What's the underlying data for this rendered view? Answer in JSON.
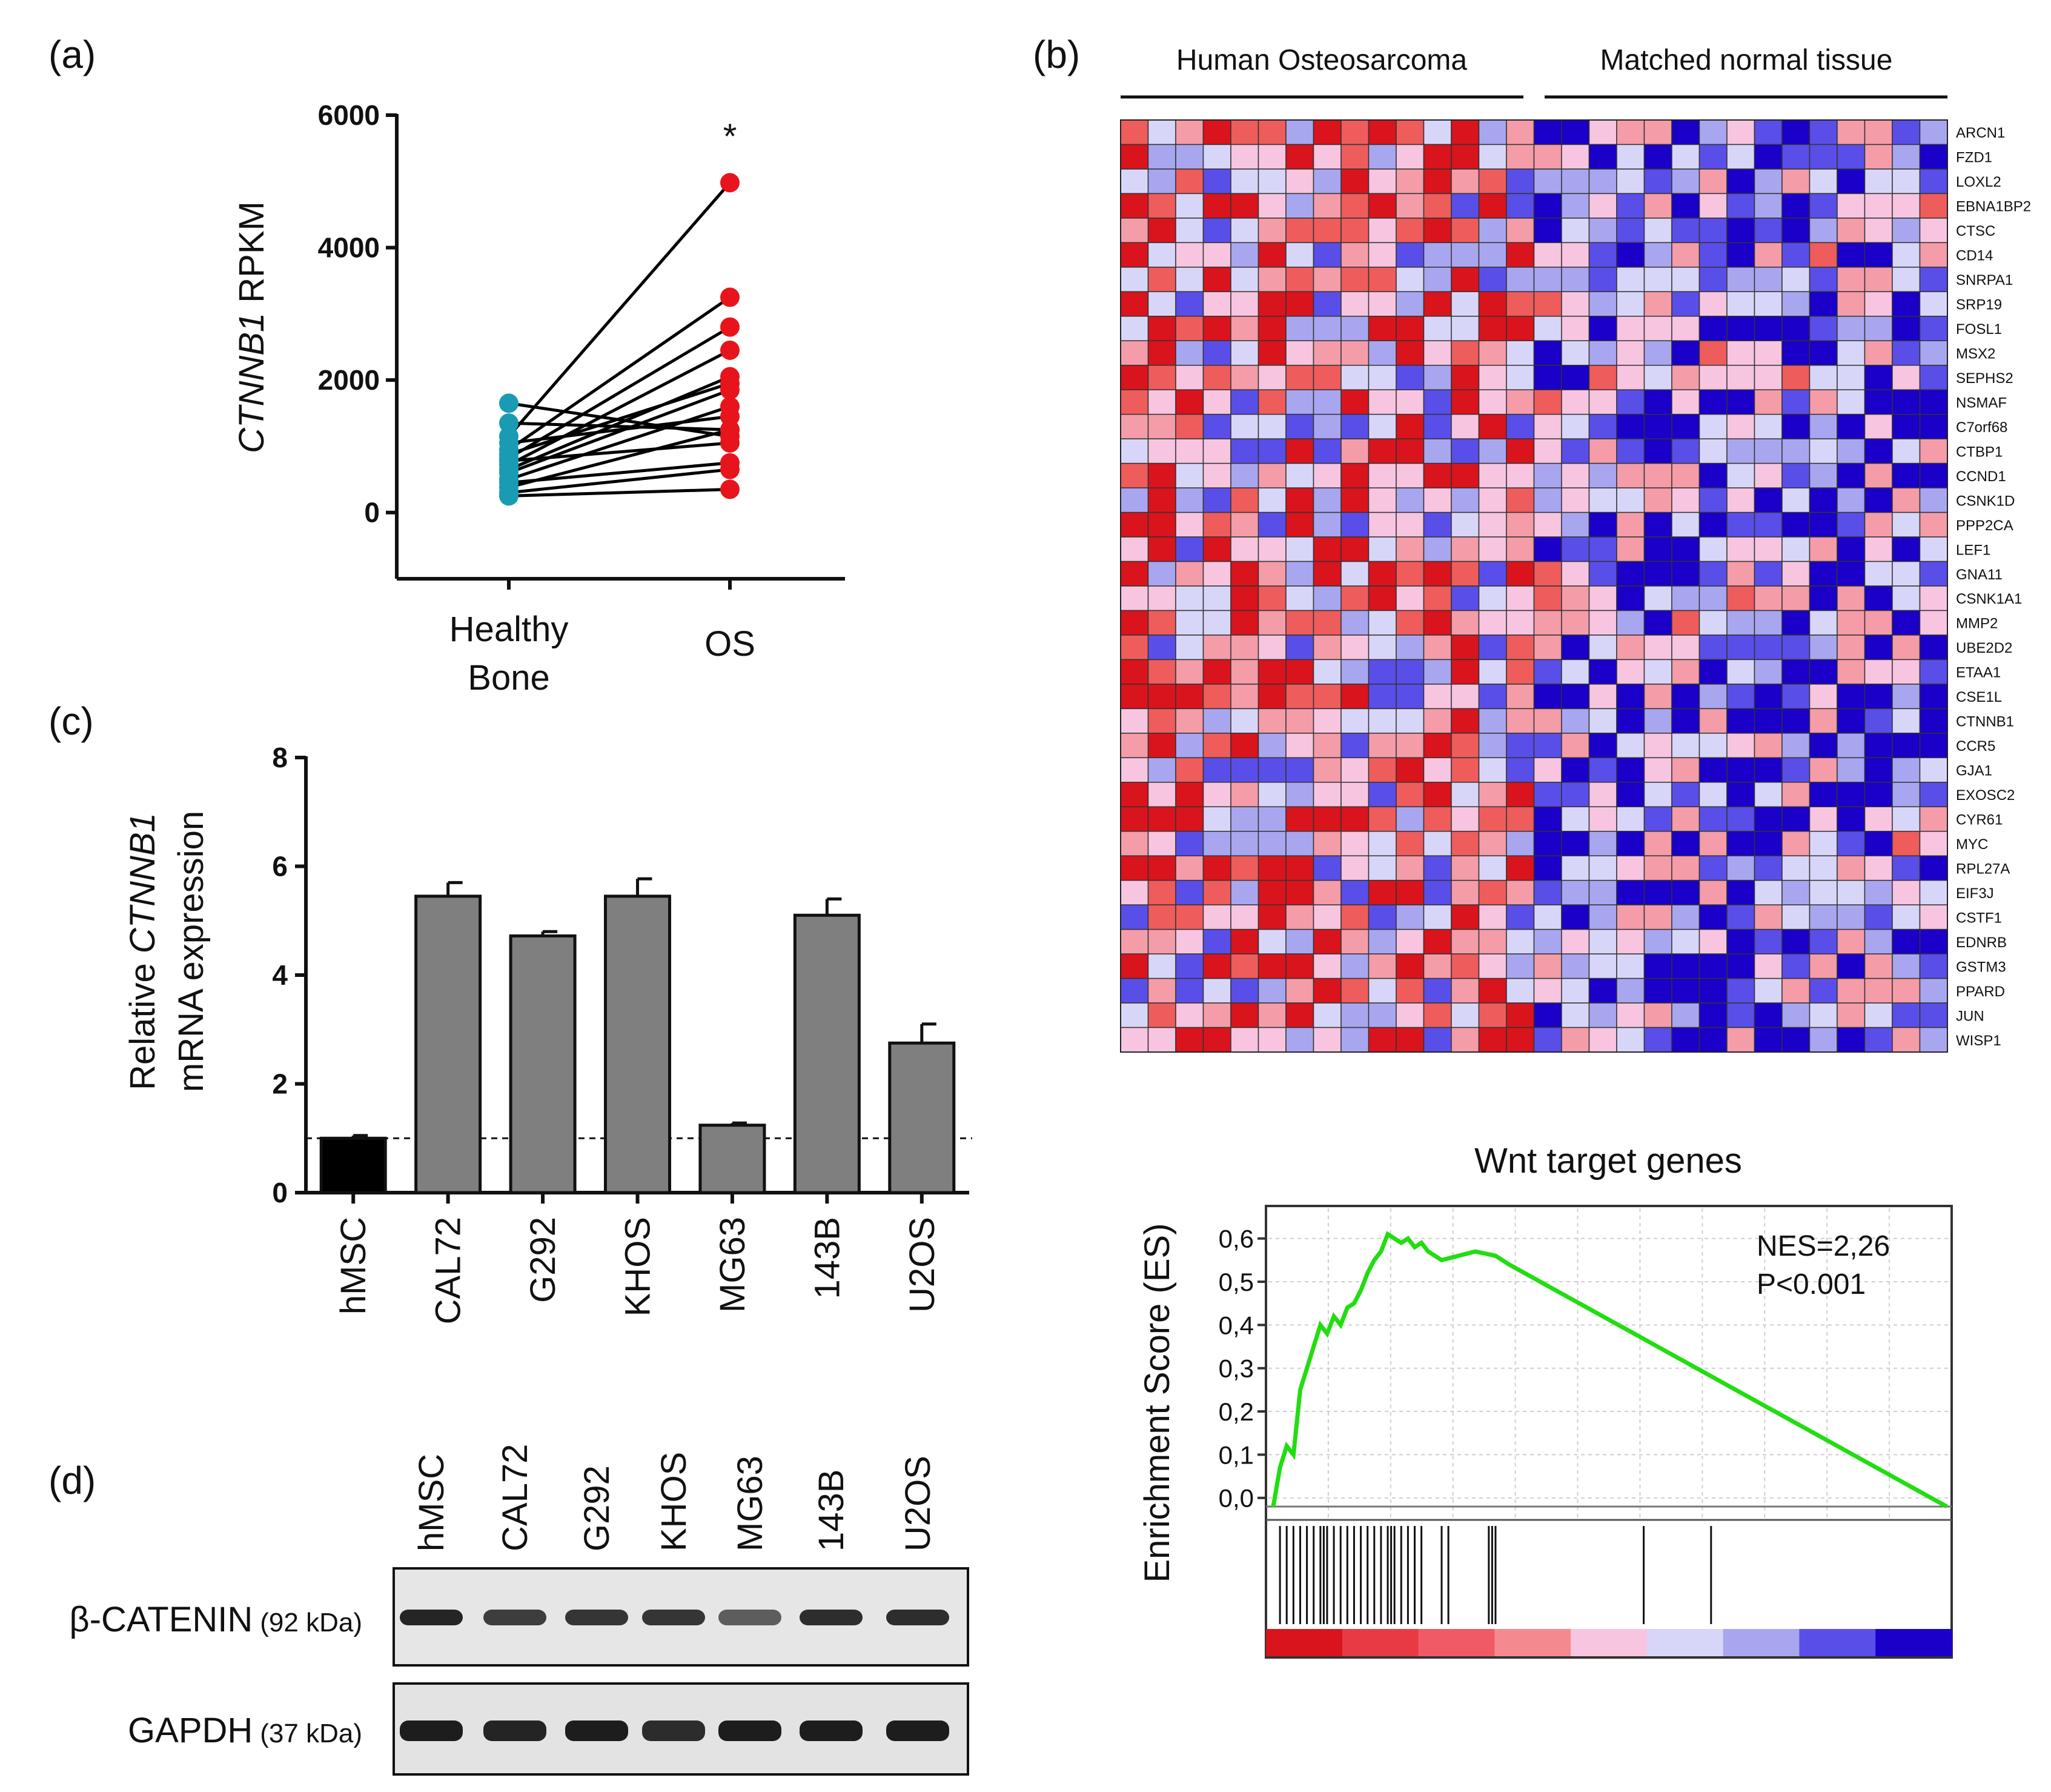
{
  "chart_data": [
    {
      "panel": "(a)",
      "type": "scatter",
      "subtype": "paired dot plot",
      "ylabel_italic": "CTNNB1",
      "ylabel_rest": " RPKM",
      "ylim": [
        -1000,
        6000
      ],
      "yticks": [
        0,
        2000,
        4000,
        6000
      ],
      "categories": [
        "Healthy Bone",
        "OS"
      ],
      "category_lines": [
        [
          "Healthy",
          "Bone"
        ],
        [
          "OS"
        ]
      ],
      "annotation": "*",
      "colors": {
        "healthy": "#1a9bb4",
        "os": "#e8141c",
        "line": "#000000"
      },
      "pairs": [
        [
          1650,
          1150
        ],
        [
          1350,
          1250
        ],
        [
          1150,
          4980
        ],
        [
          1050,
          1450
        ],
        [
          950,
          3250
        ],
        [
          880,
          1950
        ],
        [
          820,
          2800
        ],
        [
          780,
          1050
        ],
        [
          720,
          2450
        ],
        [
          650,
          2050
        ],
        [
          600,
          1850
        ],
        [
          500,
          1600
        ],
        [
          450,
          750
        ],
        [
          380,
          1250
        ],
        [
          300,
          650
        ],
        [
          250,
          350
        ]
      ]
    },
    {
      "panel": "(c)",
      "type": "bar",
      "ylabel_line1_prefix": "Relative ",
      "ylabel_line1_italic": "CTNNB1",
      "ylabel_line2": "mRNA expression",
      "ylim": [
        0,
        8
      ],
      "yticks": [
        0,
        2,
        4,
        6,
        8
      ],
      "reference_line": 1,
      "categories": [
        "hMSC",
        "CAL72",
        "G292",
        "KHOS",
        "MG63",
        "143B",
        "U2OS"
      ],
      "values": [
        1.0,
        5.45,
        4.72,
        5.45,
        1.24,
        5.1,
        2.75
      ],
      "errors": [
        0.05,
        0.25,
        0.08,
        0.32,
        0.04,
        0.3,
        0.35
      ],
      "colors": {
        "control": "#000000",
        "other": "#7f7f7f"
      }
    },
    {
      "panel": "(b)",
      "type": "heatmap",
      "group_labels": [
        "Human Osteosarcoma",
        "Matched normal tissue"
      ],
      "genes": [
        "ARCN1",
        "FZD1",
        "LOXL2",
        "EBNA1BP2",
        "CTSC",
        "CD14",
        "SNRPA1",
        "SRP19",
        "FOSL1",
        "MSX2",
        "SEPHS2",
        "NSMAF",
        "C7orf68",
        "CTBP1",
        "CCND1",
        "CSNK1D",
        "PPP2CA",
        "LEF1",
        "GNA11",
        "CSNK1A1",
        "MMP2",
        "UBE2D2",
        "ETAA1",
        "CSE1L",
        "CTNNB1",
        "CCR5",
        "GJA1",
        "EXOSC2",
        "CYR61",
        "MYC",
        "RPL27A",
        "EIF3J",
        "CSTF1",
        "EDNRB",
        "GSTM3",
        "PPARD",
        "JUN",
        "WISP1"
      ],
      "columns_per_group": [
        15,
        15
      ],
      "color_scale": [
        "#1a00c8",
        "#5a4ee8",
        "#a9a6f0",
        "#d8d6f8",
        "#f7c5e0",
        "#f49ca8",
        "#ee5c5c",
        "#d9141c"
      ]
    },
    {
      "panel": "(b)",
      "type": "line",
      "title": "Wnt target genes",
      "ylabel": "Enrichment Score (ES)",
      "ylim": [
        -0.02,
        0.65
      ],
      "yticks": [
        "0,0",
        "0,1",
        "0,2",
        "0,3",
        "0,4",
        "0,5",
        "0,6"
      ],
      "annotations": [
        "NES=2,26",
        "P<0.001"
      ],
      "line_color": "#22dd11",
      "x": [
        0,
        0.01,
        0.02,
        0.03,
        0.04,
        0.05,
        0.06,
        0.07,
        0.08,
        0.09,
        0.1,
        0.11,
        0.12,
        0.13,
        0.14,
        0.15,
        0.16,
        0.17,
        0.18,
        0.19,
        0.2,
        0.21,
        0.22,
        0.23,
        0.24,
        0.25,
        0.3,
        0.33,
        0.35,
        1.0
      ],
      "y": [
        -0.02,
        0.07,
        0.12,
        0.1,
        0.25,
        0.3,
        0.35,
        0.4,
        0.38,
        0.42,
        0.4,
        0.44,
        0.45,
        0.48,
        0.52,
        0.55,
        0.57,
        0.61,
        0.6,
        0.59,
        0.6,
        0.58,
        0.59,
        0.57,
        0.56,
        0.55,
        0.57,
        0.56,
        0.54,
        -0.02
      ],
      "hit_positions": [
        0.01,
        0.02,
        0.03,
        0.04,
        0.05,
        0.06,
        0.07,
        0.075,
        0.08,
        0.09,
        0.1,
        0.11,
        0.12,
        0.13,
        0.14,
        0.15,
        0.16,
        0.17,
        0.175,
        0.18,
        0.19,
        0.2,
        0.21,
        0.22,
        0.25,
        0.26,
        0.32,
        0.325,
        0.33,
        0.55,
        0.65
      ],
      "rank_colors": [
        "#d9141c",
        "#e83a44",
        "#f05a66",
        "#f48a90",
        "#f7c5e0",
        "#d8d6f8",
        "#a9a6f0",
        "#5a4ee8",
        "#1a00c8"
      ]
    },
    {
      "panel": "(d)",
      "type": "table",
      "subtype": "western blot",
      "lanes": [
        "hMSC",
        "CAL72",
        "G292",
        "KHOS",
        "MG63",
        "143B",
        "U2OS"
      ],
      "rows": [
        {
          "protein": "β-CATENIN",
          "kda": "(92 kDa)",
          "intensity": [
            0.9,
            0.75,
            0.8,
            0.8,
            0.55,
            0.85,
            0.85
          ]
        },
        {
          "protein": "GAPDH",
          "kda": "(37 kDa)",
          "intensity": [
            0.95,
            0.9,
            0.95,
            0.85,
            0.95,
            0.95,
            0.95
          ]
        }
      ]
    }
  ]
}
